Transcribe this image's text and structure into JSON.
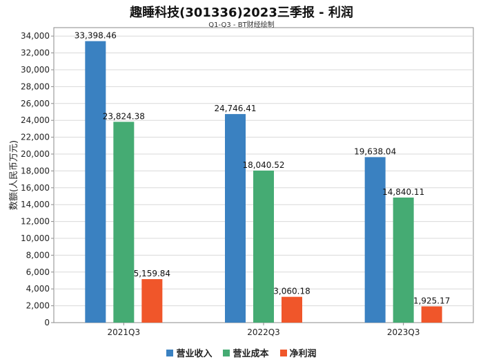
{
  "chart_data": {
    "type": "bar",
    "title": "趣睡科技(301336)2023三季报 - 利润",
    "subtitle": "Q1-Q3 - BT财经绘制",
    "xlabel": "",
    "ylabel": "数额(人民币万元)",
    "ylim": [
      0,
      35000
    ],
    "ytick_step": 2000,
    "grid": true,
    "legend_position": "bottom-center",
    "categories": [
      "2021Q3",
      "2022Q3",
      "2023Q3"
    ],
    "series": [
      {
        "name": "营业收入",
        "color": "#3a81c1",
        "values": [
          33398.46,
          24746.41,
          19638.04
        ],
        "labels": [
          "33,398.46",
          "24,746.41",
          "19,638.04"
        ]
      },
      {
        "name": "营业成本",
        "color": "#45ab73",
        "values": [
          23824.38,
          18040.52,
          14840.11
        ],
        "labels": [
          "23,824.38",
          "18,040.52",
          "14,840.11"
        ]
      },
      {
        "name": "净利润",
        "color": "#f0562a",
        "values": [
          5159.84,
          3060.18,
          1925.17
        ],
        "labels": [
          "5,159.84",
          "3,060.18",
          "1,925.17"
        ]
      }
    ]
  }
}
